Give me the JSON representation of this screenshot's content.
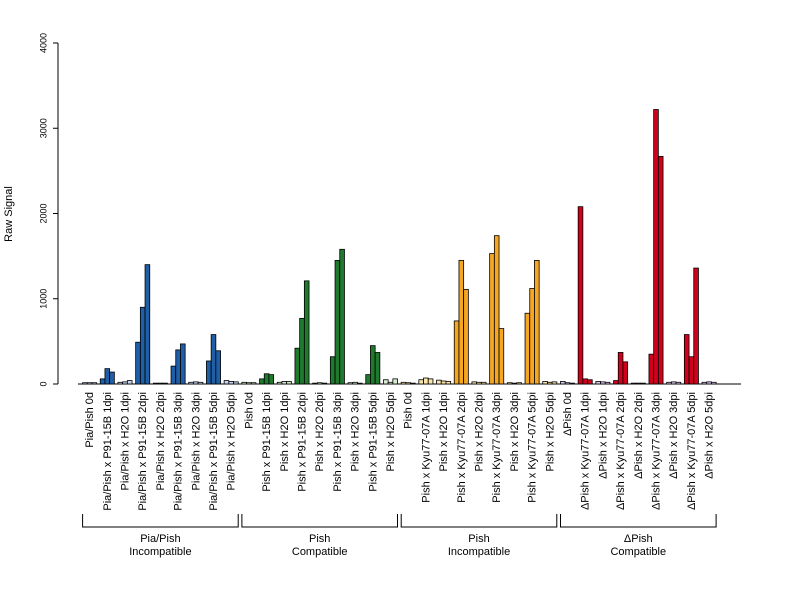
{
  "chart_data": {
    "type": "bar",
    "ylabel": "Raw Signal",
    "ylim": [
      0,
      4000
    ],
    "yticks": [
      0,
      1000,
      2000,
      3000,
      4000
    ],
    "grid": false,
    "legend": "none",
    "categories": [
      "Pia/Pish 0d",
      "Pia/Pish x P91-15B 1dpi",
      "Pia/Pish x H2O 1dpi",
      "Pia/Pish x P91-15B 2dpi",
      "Pia/Pish x H2O 2dpi",
      "Pia/Pish x P91-15B 3dpi",
      "Pia/Pish x H2O 3dpi",
      "Pia/Pish x P91-15B 5dpi",
      "Pia/Pish x H2O 5dpi",
      "Pish 0d",
      "Pish x P91-15B 1dpi",
      "Pish x H2O 1dpi",
      "Pish x P91-15B 2dpi",
      "Pish x H2O 2dpi",
      "Pish x P91-15B 3dpi",
      "Pish x H2O 3dpi",
      "Pish x P91-15B 5dpi",
      "Pish x H2O 5dpi",
      "Pish 0d",
      "Pish x Kyu77-07A 1dpi",
      "Pish x H2O 1dpi",
      "Pish x Kyu77-07A 2dpi",
      "Pish x H2O 2dpi",
      "Pish x Kyu77-07A 3dpi",
      "Pish x H2O 3dpi",
      "Pish x Kyu77-07A 5dpi",
      "Pish x H2O 5dpi",
      "ΔPish 0d",
      "ΔPish x Kyu77-07A 1dpi",
      "ΔPish x H2O 1dpi",
      "ΔPish x Kyu77-07A 2dpi",
      "ΔPish x H2O 2dpi",
      "ΔPish x Kyu77-07A 3dpi",
      "ΔPish x H2O 3dpi",
      "ΔPish x Kyu77-07A 5dpi",
      "ΔPish x H2O 5dpi"
    ],
    "values": [
      [
        15,
        15,
        15
      ],
      [
        60,
        180,
        140
      ],
      [
        20,
        25,
        40
      ],
      [
        490,
        900,
        1400
      ],
      [
        10,
        10,
        10
      ],
      [
        210,
        400,
        470
      ],
      [
        20,
        25,
        20
      ],
      [
        270,
        580,
        390
      ],
      [
        40,
        30,
        25
      ],
      [
        20,
        15,
        15
      ],
      [
        60,
        120,
        110
      ],
      [
        20,
        30,
        30
      ],
      [
        420,
        770,
        1210
      ],
      [
        10,
        15,
        10
      ],
      [
        320,
        1450,
        1580
      ],
      [
        15,
        20,
        10
      ],
      [
        110,
        450,
        370
      ],
      [
        50,
        20,
        60
      ],
      [
        20,
        15,
        10
      ],
      [
        50,
        70,
        60
      ],
      [
        45,
        35,
        30
      ],
      [
        740,
        1450,
        1110
      ],
      [
        25,
        20,
        20
      ],
      [
        1530,
        1740,
        650
      ],
      [
        15,
        10,
        15
      ],
      [
        830,
        1120,
        1450
      ],
      [
        30,
        20,
        25
      ],
      [
        30,
        15,
        10
      ],
      [
        2080,
        60,
        50
      ],
      [
        30,
        25,
        20
      ],
      [
        40,
        370,
        260
      ],
      [
        10,
        10,
        10
      ],
      [
        350,
        3220,
        2670
      ],
      [
        20,
        25,
        20
      ],
      [
        580,
        320,
        1360
      ],
      [
        20,
        25,
        20
      ]
    ],
    "groups": [
      {
        "line1": "Pia/Pish",
        "line2": "Incompatible",
        "color": "#1f5fa8",
        "light": "#c6d6f0",
        "start": 0,
        "count": 9
      },
      {
        "line1": "Pish",
        "line2": "Compatible",
        "color": "#1f7a2e",
        "light": "#d6ecd0",
        "start": 9,
        "count": 9
      },
      {
        "line1": "Pish",
        "line2": "Incompatible",
        "color": "#f5a623",
        "light": "#fbe7a8",
        "start": 18,
        "count": 9
      },
      {
        "line1": "ΔPish",
        "line2": "Compatible",
        "color": "#d0021b",
        "light": "#d9c8ef",
        "start": 27,
        "count": 9
      }
    ]
  }
}
